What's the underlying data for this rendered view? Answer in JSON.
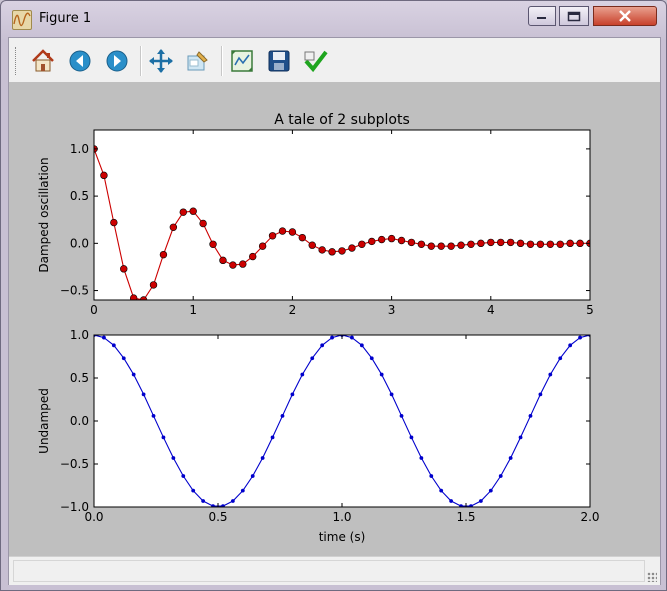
{
  "window": {
    "title": "Figure 1",
    "controls": {
      "minimize": "minimize",
      "maximize": "maximize",
      "close": "close"
    }
  },
  "toolbar": {
    "items": [
      {
        "name": "home",
        "icon": "home-icon"
      },
      {
        "name": "back",
        "icon": "back-arrow-icon"
      },
      {
        "name": "forward",
        "icon": "forward-arrow-icon"
      },
      {
        "name": "pan",
        "icon": "pan-arrows-icon"
      },
      {
        "name": "zoom",
        "icon": "zoom-rect-icon"
      },
      {
        "name": "subplots",
        "icon": "configure-subplots-icon"
      },
      {
        "name": "save",
        "icon": "floppy-disk-icon"
      },
      {
        "name": "edit",
        "icon": "checkmark-icon"
      }
    ]
  },
  "colors": {
    "damped": "#cc0000",
    "undamped": "#0000cc",
    "figure_bg": "#bfbfbf"
  },
  "chart_data": [
    {
      "type": "line",
      "title": "A tale of 2 subplots",
      "xlabel": "",
      "ylabel": "Damped oscillation",
      "xlim": [
        0,
        5
      ],
      "ylim": [
        -0.6,
        1.2
      ],
      "xticks": [
        "0",
        "1",
        "2",
        "3",
        "4",
        "5"
      ],
      "yticks": [
        "1.0",
        "0.5",
        "0.0",
        "−0.5"
      ],
      "ytick_values": [
        1.0,
        0.5,
        0.0,
        -0.5
      ],
      "xtick_values": [
        0,
        1,
        2,
        3,
        4,
        5
      ],
      "series": [
        {
          "marker": "o",
          "x": [
            0.0,
            0.1,
            0.2,
            0.3,
            0.4,
            0.5,
            0.6,
            0.7,
            0.8,
            0.9,
            1.0,
            1.1,
            1.2,
            1.3,
            1.4,
            1.5,
            1.6,
            1.7,
            1.8,
            1.9,
            2.0,
            2.1,
            2.2,
            2.3,
            2.4,
            2.5,
            2.6,
            2.7,
            2.8,
            2.9,
            3.0,
            3.1,
            3.2,
            3.3,
            3.4,
            3.5,
            3.6,
            3.7,
            3.8,
            3.9,
            4.0,
            4.1,
            4.2,
            4.3,
            4.4,
            4.5,
            4.6,
            4.7,
            4.8,
            4.9,
            5.0
          ],
          "y": [
            1.0,
            0.72,
            0.22,
            -0.27,
            -0.58,
            -0.6,
            -0.44,
            -0.12,
            0.17,
            0.33,
            0.34,
            0.21,
            -0.01,
            -0.18,
            -0.23,
            -0.22,
            -0.14,
            -0.03,
            0.08,
            0.13,
            0.12,
            0.06,
            -0.02,
            -0.07,
            -0.09,
            -0.08,
            -0.05,
            -0.01,
            0.02,
            0.04,
            0.05,
            0.03,
            0.01,
            -0.01,
            -0.03,
            -0.03,
            -0.03,
            -0.02,
            -0.01,
            0.0,
            0.01,
            0.01,
            0.01,
            0.0,
            -0.01,
            -0.01,
            -0.01,
            -0.01,
            0.0,
            0.0,
            0.0
          ]
        }
      ]
    },
    {
      "type": "line",
      "title": "",
      "xlabel": "time (s)",
      "ylabel": "Undamped",
      "xlim": [
        0,
        2
      ],
      "ylim": [
        -1,
        1
      ],
      "xticks": [
        "0.0",
        "0.5",
        "1.0",
        "1.5",
        "2.0"
      ],
      "xtick_values": [
        0,
        0.5,
        1.0,
        1.5,
        2.0
      ],
      "yticks": [
        "1.0",
        "0.5",
        "0.0",
        "−0.5",
        "−1.0"
      ],
      "ytick_values": [
        1.0,
        0.5,
        0.0,
        -0.5,
        -1.0
      ],
      "series": [
        {
          "marker": ".",
          "x": [
            0.0,
            0.04,
            0.08,
            0.12,
            0.16,
            0.2,
            0.24,
            0.28,
            0.32,
            0.36,
            0.4,
            0.44,
            0.48,
            0.52,
            0.56,
            0.6,
            0.64,
            0.68,
            0.72,
            0.76,
            0.8,
            0.84,
            0.88,
            0.92,
            0.96,
            1.0,
            1.04,
            1.08,
            1.12,
            1.16,
            1.2,
            1.24,
            1.28,
            1.32,
            1.36,
            1.4,
            1.44,
            1.48,
            1.52,
            1.56,
            1.6,
            1.64,
            1.68,
            1.72,
            1.76,
            1.8,
            1.84,
            1.88,
            1.92,
            1.96,
            2.0
          ],
          "y": [
            1.0,
            0.97,
            0.88,
            0.73,
            0.54,
            0.31,
            0.06,
            -0.19,
            -0.43,
            -0.64,
            -0.81,
            -0.93,
            -0.99,
            -0.99,
            -0.93,
            -0.81,
            -0.64,
            -0.43,
            -0.19,
            0.06,
            0.31,
            0.54,
            0.73,
            0.88,
            0.97,
            1.0,
            0.97,
            0.88,
            0.73,
            0.54,
            0.31,
            0.06,
            -0.19,
            -0.43,
            -0.64,
            -0.81,
            -0.93,
            -0.99,
            -0.99,
            -0.93,
            -0.81,
            -0.64,
            -0.43,
            -0.19,
            0.06,
            0.31,
            0.54,
            0.73,
            0.88,
            0.97,
            1.0
          ]
        }
      ]
    }
  ]
}
